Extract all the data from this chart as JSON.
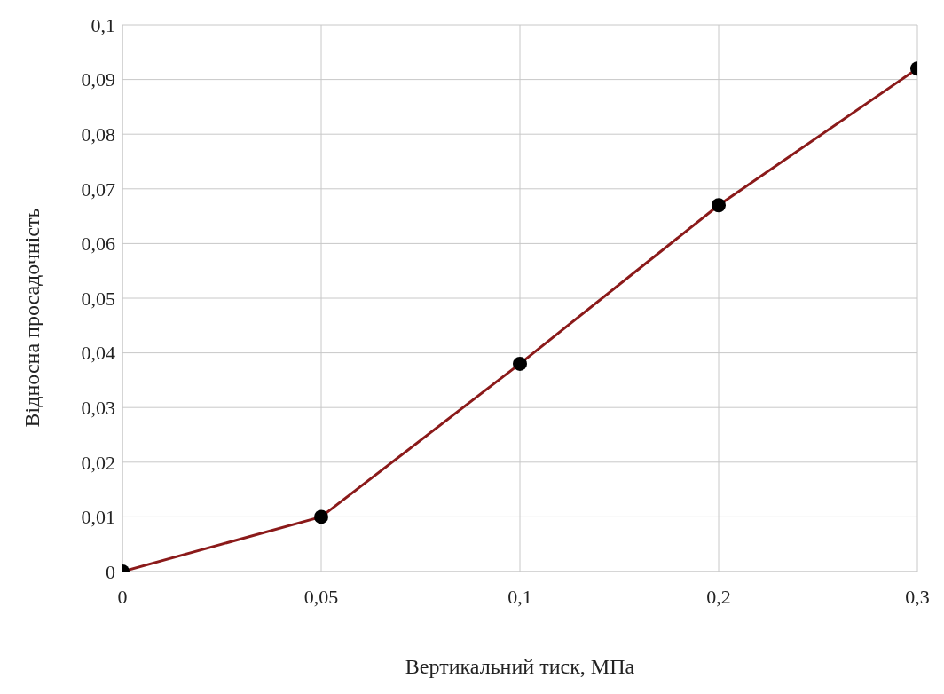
{
  "chart_data": {
    "type": "line",
    "xlabel": "Вертикальний тиск, МПа",
    "ylabel": "Відносна просадочність",
    "categories": [
      "0",
      "0,05",
      "0,1",
      "0,2",
      "0,3"
    ],
    "series": [
      {
        "color": "#8b1a1a",
        "values": [
          0,
          0.01,
          0.038,
          0.067,
          0.092
        ]
      }
    ],
    "ylim": [
      0,
      0.1
    ],
    "yticks": [
      {
        "value": 0,
        "label": "0"
      },
      {
        "value": 0.01,
        "label": "0,01"
      },
      {
        "value": 0.02,
        "label": "0,02"
      },
      {
        "value": 0.03,
        "label": "0,03"
      },
      {
        "value": 0.04,
        "label": "0,04"
      },
      {
        "value": 0.05,
        "label": "0,05"
      },
      {
        "value": 0.06,
        "label": "0,06"
      },
      {
        "value": 0.07,
        "label": "0,07"
      },
      {
        "value": 0.08,
        "label": "0,08"
      },
      {
        "value": 0.09,
        "label": "0,09"
      },
      {
        "value": 0.1,
        "label": "0,1"
      }
    ],
    "grid": true,
    "marker": "circle",
    "line_style": "solid",
    "legend": false
  }
}
